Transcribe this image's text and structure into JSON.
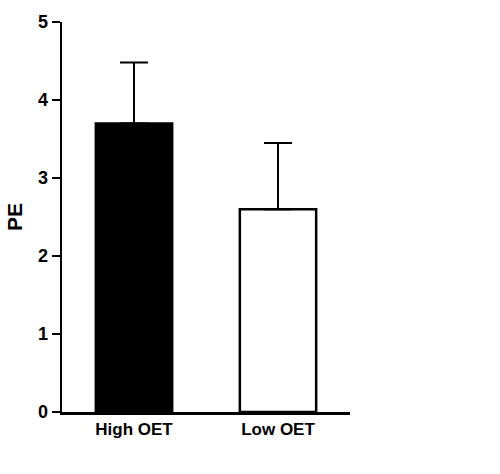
{
  "chart_data": {
    "type": "bar",
    "y_label": "PE",
    "categories": [
      "High OET",
      "Low OET"
    ],
    "values": [
      3.7,
      2.6
    ],
    "errors": [
      0.78,
      0.85
    ],
    "colors": [
      "#000000",
      "#ffffff"
    ],
    "ylim": [
      0,
      5
    ],
    "yticks": [
      0,
      1,
      2,
      3,
      4,
      5
    ],
    "grid": false
  }
}
